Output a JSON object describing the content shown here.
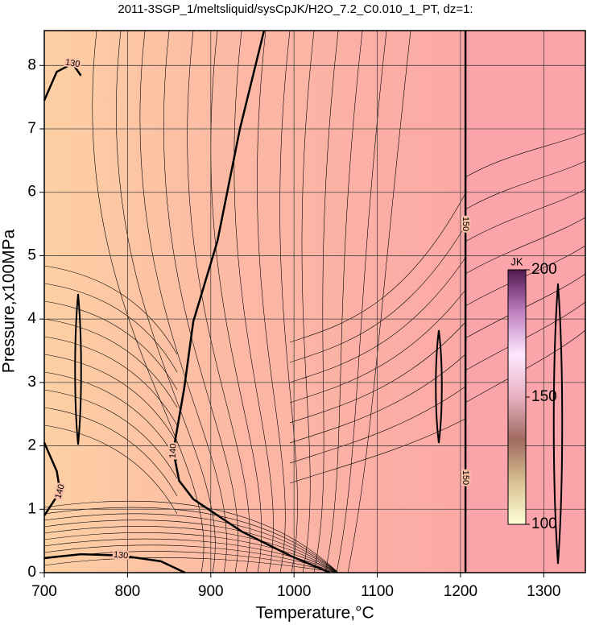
{
  "chart_data": {
    "type": "contour",
    "title": "2011-3SGP_1/meltsliquid/sysCpJK/H2O_7.2_C0.010_1_PT, dz=1:",
    "xlabel": "Temperature,°C",
    "ylabel": "Pressure,x100MPa",
    "xlim": [
      700,
      1350
    ],
    "ylim": [
      0,
      8.55
    ],
    "xticks": [
      700,
      800,
      900,
      1000,
      1100,
      1200,
      1300
    ],
    "yticks": [
      0,
      1,
      2,
      3,
      4,
      5,
      6,
      7,
      8
    ],
    "grid": true,
    "contours": [
      {
        "level": 140,
        "x": [
          964,
          935,
          908,
          879,
          868,
          855,
          862,
          879,
          937,
          995,
          1043
        ],
        "y": [
          8.55,
          7.0,
          5.23,
          3.96,
          2.9,
          1.92,
          1.45,
          1.16,
          0.65,
          0.27,
          0
        ]
      },
      {
        "level": 150,
        "x": [
          1206,
          1206,
          1206,
          1206,
          1206
        ],
        "y": [
          8.55,
          5.5,
          3.0,
          1.5,
          0
        ]
      },
      {
        "level": 130,
        "x": [
          700,
          744,
          792,
          840,
          869
        ],
        "y": [
          0.23,
          0.29,
          0.27,
          0.18,
          0
        ]
      },
      {
        "level": 130,
        "x": [
          700,
          715,
          734,
          744
        ],
        "y": [
          7.45,
          7.9,
          8.03,
          7.84
        ]
      },
      {
        "level": 140,
        "x": [
          700,
          715,
          719,
          700
        ],
        "y": [
          2.05,
          1.6,
          1.28,
          0.9
        ]
      }
    ],
    "colorbar": {
      "label": "JK",
      "lim": [
        100,
        200
      ],
      "ticks": [
        100,
        150,
        200
      ],
      "colors": [
        "#ffffd8",
        "#d8c090",
        "#a06a60",
        "#e8b0c0",
        "#ffe8ff",
        "#c080c0",
        "#501850"
      ]
    }
  }
}
